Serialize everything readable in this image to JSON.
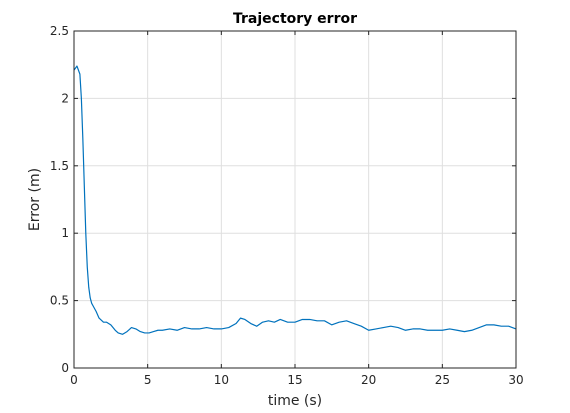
{
  "chart_data": {
    "type": "line",
    "title": "Trajectory error",
    "xlabel": "time (s)",
    "ylabel": "Error (m)",
    "xlim": [
      0,
      30
    ],
    "ylim": [
      0,
      2.5
    ],
    "xticks": [
      0,
      5,
      10,
      15,
      20,
      25,
      30
    ],
    "yticks": [
      0,
      0.5,
      1,
      1.5,
      2,
      2.5
    ],
    "xtick_labels": [
      "0",
      "5",
      "10",
      "15",
      "20",
      "25",
      "30"
    ],
    "ytick_labels": [
      "0",
      "0.5",
      "1",
      "1.5",
      "2",
      "2.5"
    ],
    "grid": true,
    "line_color": "#0072BD",
    "series": [
      {
        "x": [
          0,
          0.2,
          0.4,
          0.5,
          0.6,
          0.7,
          0.8,
          0.9,
          1.0,
          1.1,
          1.2,
          1.3,
          1.5,
          1.7,
          2.0,
          2.2,
          2.5,
          2.8,
          3.0,
          3.3,
          3.6,
          3.9,
          4.2,
          4.5,
          4.8,
          5.1,
          5.4,
          5.7,
          6.0,
          6.5,
          7.0,
          7.5,
          8.0,
          8.5,
          9.0,
          9.5,
          10.0,
          10.5,
          11.0,
          11.3,
          11.6,
          12.0,
          12.4,
          12.8,
          13.2,
          13.6,
          14.0,
          14.5,
          15.0,
          15.5,
          16.0,
          16.5,
          17.0,
          17.5,
          18.0,
          18.5,
          19.0,
          19.5,
          20.0,
          20.5,
          21.0,
          21.5,
          22.0,
          22.5,
          23.0,
          23.5,
          24.0,
          24.5,
          25.0,
          25.5,
          26.0,
          26.5,
          27.0,
          27.5,
          28.0,
          28.5,
          29.0,
          29.5,
          30.0
        ],
        "y": [
          2.21,
          2.24,
          2.18,
          2.0,
          1.7,
          1.35,
          1.0,
          0.75,
          0.6,
          0.52,
          0.48,
          0.46,
          0.42,
          0.37,
          0.34,
          0.34,
          0.32,
          0.28,
          0.26,
          0.25,
          0.27,
          0.3,
          0.29,
          0.27,
          0.26,
          0.26,
          0.27,
          0.28,
          0.28,
          0.29,
          0.28,
          0.3,
          0.29,
          0.29,
          0.3,
          0.29,
          0.29,
          0.3,
          0.33,
          0.37,
          0.36,
          0.33,
          0.31,
          0.34,
          0.35,
          0.34,
          0.36,
          0.34,
          0.34,
          0.36,
          0.36,
          0.35,
          0.35,
          0.32,
          0.34,
          0.35,
          0.33,
          0.31,
          0.28,
          0.29,
          0.3,
          0.31,
          0.3,
          0.28,
          0.29,
          0.29,
          0.28,
          0.28,
          0.28,
          0.29,
          0.28,
          0.27,
          0.28,
          0.3,
          0.32,
          0.32,
          0.31,
          0.31,
          0.29
        ]
      }
    ]
  }
}
